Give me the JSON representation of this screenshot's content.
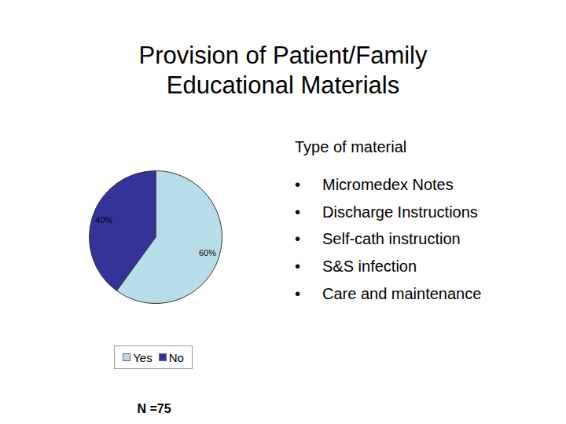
{
  "chart_data": {
    "type": "pie",
    "title": "Provision of Patient/Family Educational Materials",
    "categories": [
      "Yes",
      "No"
    ],
    "values": [
      60,
      40
    ],
    "value_labels": [
      "60%",
      "40%"
    ],
    "colors": [
      "#b7dee8",
      "#333399"
    ],
    "data_labels": true,
    "legend": "bottom",
    "annotations": [
      "N =75"
    ]
  },
  "side_panel": {
    "heading": "Type of material",
    "items": [
      "Micromedex Notes",
      "Discharge Instructions",
      "Self-cath instruction",
      "S&S infection",
      "Care and maintenance"
    ]
  }
}
